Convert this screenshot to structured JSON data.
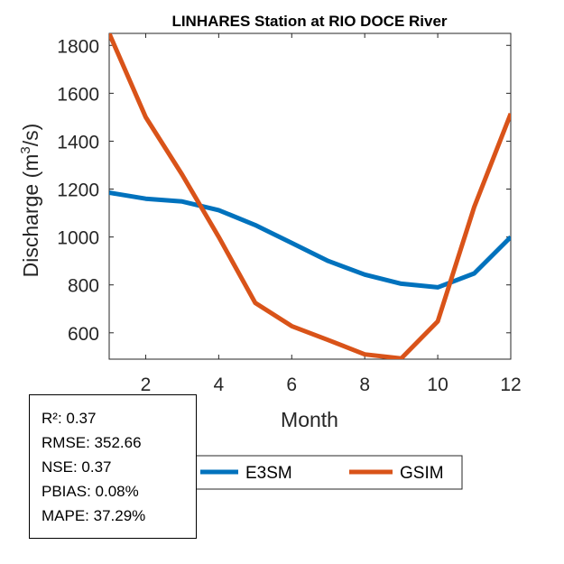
{
  "chart_data": {
    "type": "line",
    "title": "LINHARES  Station at  RIO DOCE  River",
    "xlabel": "Month",
    "ylabel": "Discharge (m³/s)",
    "ylabel_parts": {
      "prefix": "Discharge (m",
      "sup": "3",
      "suffix": "/s)"
    },
    "xlim": [
      1,
      12
    ],
    "ylim": [
      490,
      1850
    ],
    "xticks": [
      2,
      4,
      6,
      8,
      10,
      12
    ],
    "yticks": [
      600,
      800,
      1000,
      1200,
      1400,
      1600,
      1800
    ],
    "grid": false,
    "legend_position": "bottom-outside",
    "x": [
      1,
      2,
      3,
      4,
      5,
      6,
      7,
      8,
      9,
      10,
      11,
      12
    ],
    "series": [
      {
        "name": "E3SM",
        "color": "#0072BD",
        "values": [
          1185,
          1160,
          1148,
          1112,
          1050,
          975,
          900,
          843,
          805,
          790,
          848,
          1000
        ]
      },
      {
        "name": "GSIM",
        "color": "#D95319",
        "values": [
          1850,
          1500,
          1260,
          1000,
          725,
          628,
          570,
          510,
          493,
          648,
          1125,
          1515
        ]
      }
    ]
  },
  "stats": [
    "R²: 0.37",
    "RMSE: 352.66",
    "NSE: 0.37",
    "PBIAS: 0.08%",
    "MAPE: 37.29%"
  ]
}
